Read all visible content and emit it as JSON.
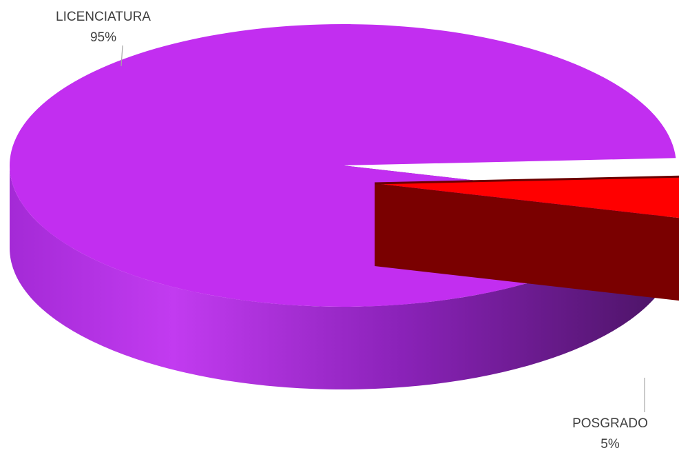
{
  "chart_data": {
    "type": "pie",
    "style": "3d-exploded",
    "title": "",
    "slices": [
      {
        "category": "LICENCIATURA",
        "percent_label": "95%",
        "value": 95,
        "color": "#c22ef0",
        "side_color": "#7a1ca6",
        "exploded": false
      },
      {
        "category": "POSGRADO",
        "percent_label": "5%",
        "value": 5,
        "color": "#ff0000",
        "side_color": "#7a0000",
        "exploded": true
      }
    ],
    "legend": "none",
    "data_labels": "outside-with-leader-lines"
  }
}
